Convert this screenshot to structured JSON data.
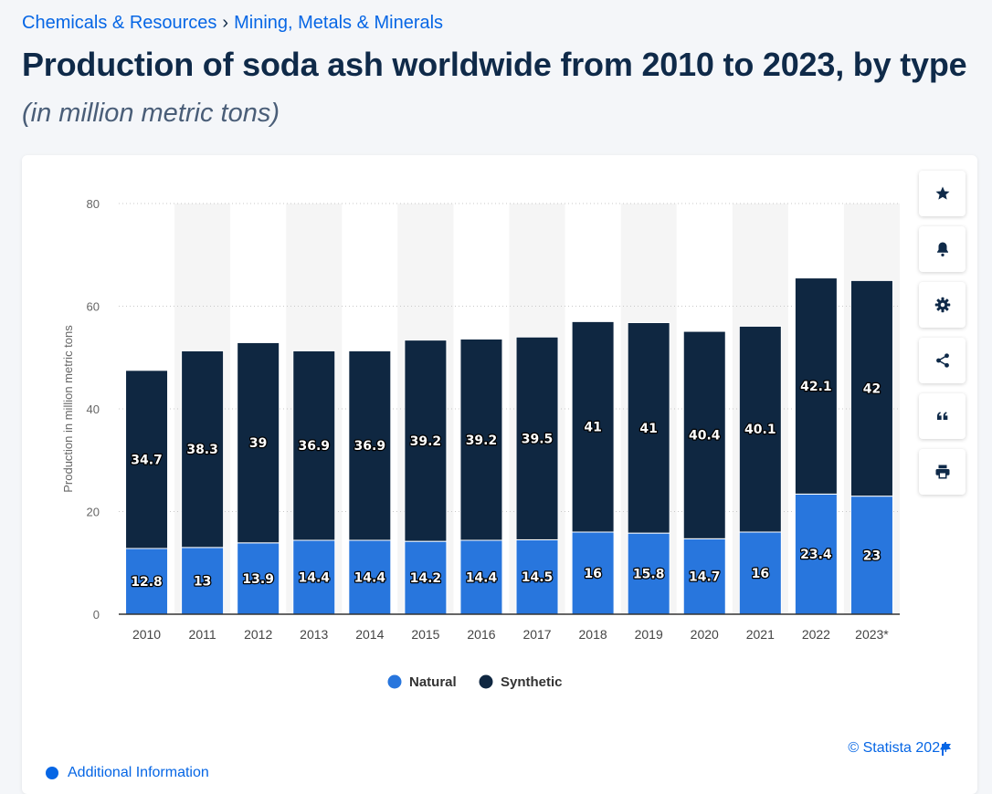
{
  "breadcrumb": {
    "category": "Chemicals & Resources",
    "separator": "›",
    "subcategory": "Mining, Metals & Minerals"
  },
  "header": {
    "title": "Production of soda ash worldwide from 2010 to 2023, by type",
    "subtitle": "(in million metric tons)"
  },
  "colors": {
    "natural": "#2876dd",
    "synthetic": "#0f2741",
    "accent": "#0666e5"
  },
  "toolbar": {
    "items": [
      {
        "name": "favorite-button",
        "icon": "star-icon"
      },
      {
        "name": "notification-button",
        "icon": "bell-icon"
      },
      {
        "name": "settings-button",
        "icon": "gear-icon"
      },
      {
        "name": "share-button",
        "icon": "share-icon"
      },
      {
        "name": "cite-button",
        "icon": "quote-icon"
      },
      {
        "name": "print-button",
        "icon": "print-icon"
      }
    ]
  },
  "footer": {
    "copyright": "© Statista 2024",
    "additional_info": "Additional Information"
  },
  "chart_data": {
    "type": "bar",
    "stacked": true,
    "categories": [
      "2010",
      "2011",
      "2012",
      "2013",
      "2014",
      "2015",
      "2016",
      "2017",
      "2018",
      "2019",
      "2020",
      "2021",
      "2022",
      "2023*"
    ],
    "series": [
      {
        "name": "Natural",
        "color": "#2876dd",
        "values": [
          12.8,
          13,
          13.9,
          14.4,
          14.4,
          14.2,
          14.4,
          14.5,
          16,
          15.8,
          14.7,
          16,
          23.4,
          23
        ]
      },
      {
        "name": "Synthetic",
        "color": "#0f2741",
        "values": [
          34.7,
          38.3,
          39,
          36.9,
          36.9,
          39.2,
          39.2,
          39.5,
          41,
          41,
          40.4,
          40.1,
          42.1,
          42
        ]
      }
    ],
    "ylabel": "Production in million metric tons",
    "ylim": [
      0,
      80
    ],
    "yticks": [
      0,
      20,
      40,
      60,
      80
    ],
    "grid": true,
    "legend": "bottom-center"
  }
}
